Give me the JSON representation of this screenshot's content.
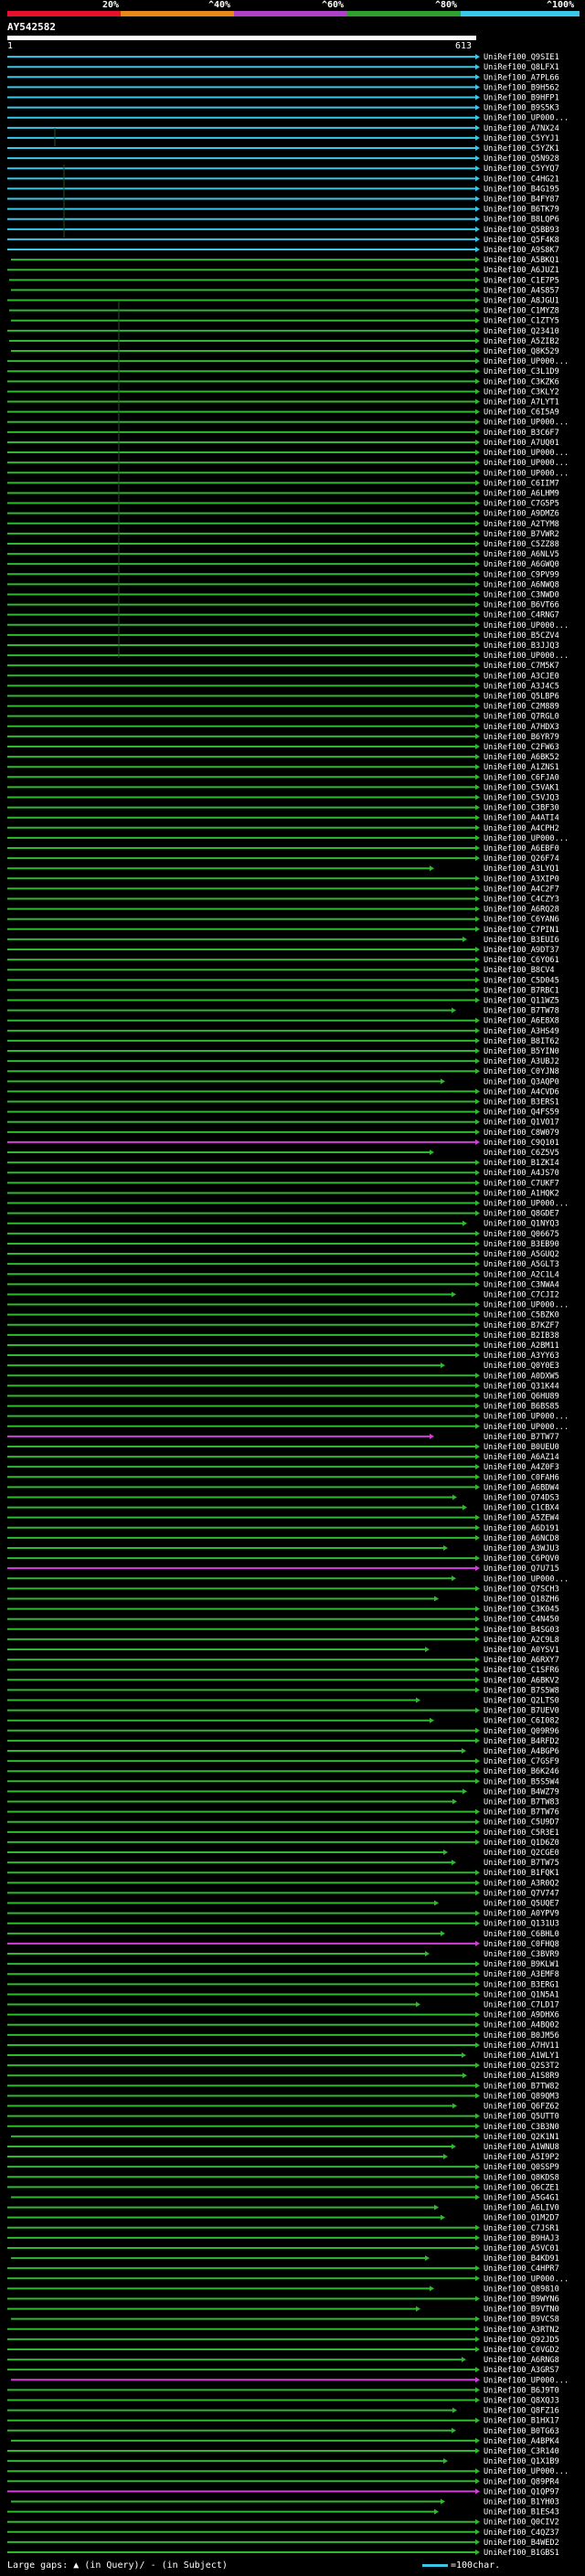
{
  "scale": {
    "labels": [
      "20%",
      "^40%",
      "^60%",
      "^80%",
      "^100%"
    ],
    "colors": [
      "#e8102a",
      "#e8881a",
      "#b040c8",
      "#30a030",
      "#38c8e8"
    ]
  },
  "title": "AY542582",
  "query": {
    "start": "1",
    "end": "613"
  },
  "hit_colors": {
    "cyan": "#38c8e8",
    "green": "#30b830",
    "magenta": "#d040d8",
    "gray": "#888888"
  },
  "hits": [
    "UniRef100_Q9SIE1",
    "UniRef100_Q8LFX1",
    "UniRef100_A7PL66",
    "UniRef100_B9H562",
    "UniRef100_B9HFP1",
    "UniRef100_B9S5K3",
    "UniRef100_UP000...",
    "UniRef100_A7NX24",
    "UniRef100_C5YYJ1",
    "UniRef100_C5YZK1",
    "UniRef100_Q5N928",
    "UniRef100_C5YYQ7",
    "UniRef100_C4HG21",
    "UniRef100_B4G195",
    "UniRef100_B4FY87",
    "UniRef100_B6TK79",
    "UniRef100_B8LQP6",
    "UniRef100_Q5BB93",
    "UniRef100_Q5F4K8",
    "UniRef100_A9S8K7",
    "UniRef100_A5BKQ1",
    "UniRef100_A6JUZ1",
    "UniRef100_C1E7P5",
    "UniRef100_A4S857",
    "UniRef100_A8JGU1",
    "UniRef100_C1MYZ8",
    "UniRef100_C1ZTY5",
    "UniRef100_Q23410",
    "UniRef100_A5ZIB2",
    "UniRef100_Q8K529",
    "UniRef100_UP000...",
    "UniRef100_C3L1D9",
    "UniRef100_C3KZK6",
    "UniRef100_C3KLY2",
    "UniRef100_A7LYT1",
    "UniRef100_C6I5A9",
    "UniRef100_UP000...",
    "UniRef100_B3C6F7",
    "UniRef100_A7UQ01",
    "UniRef100_UP000...",
    "UniRef100_UP000...",
    "UniRef100_UP000...",
    "UniRef100_C6IIM7",
    "UniRef100_A6LHM9",
    "UniRef100_C7G5P5",
    "UniRef100_A9DMZ6",
    "UniRef100_A2TYM8",
    "UniRef100_B7VWR2",
    "UniRef100_C5ZZ88",
    "UniRef100_A6NLV5",
    "UniRef100_A6GWQ0",
    "UniRef100_C9PV99",
    "UniRef100_A6NWQ8",
    "UniRef100_C3NWD0",
    "UniRef100_B6VT66",
    "UniRef100_C4RNG7",
    "UniRef100_UP000...",
    "UniRef100_B5CZV4",
    "UniRef100_B3JJQ3",
    "UniRef100_UP000...",
    "UniRef100_C7M5K7",
    "UniRef100_A3CJE0",
    "UniRef100_A3J4C5",
    "UniRef100_Q5LBP6",
    "UniRef100_C2M889",
    "UniRef100_Q7RGL0",
    "UniRef100_A7HDX3",
    "UniRef100_B6YR79",
    "UniRef100_C2FW63",
    "UniRef100_A6BK52",
    "UniRef100_A1ZNS1",
    "UniRef100_C6FJA0",
    "UniRef100_C5VAK1",
    "UniRef100_C5VJQ3",
    "UniRef100_C3BF30",
    "UniRef100_A4ATI4",
    "UniRef100_A4CPH2",
    "UniRef100_UP000...",
    "UniRef100_A6EBF0",
    "UniRef100_Q26F74",
    "UniRef100_A3LYQ1",
    "UniRef100_A3XIP0",
    "UniRef100_A4C2F7",
    "UniRef100_C4CZY3",
    "UniRef100_A6RQ28",
    "UniRef100_C6YAN6",
    "UniRef100_C7PIN1",
    "UniRef100_B3EUI6",
    "UniRef100_A9DT37",
    "UniRef100_C6YO61",
    "UniRef100_B8CV4",
    "UniRef100_C5D045",
    "UniRef100_B7RBC1",
    "UniRef100_Q11WZ5",
    "UniRef100_B7TW78",
    "UniRef100_A6E8X8",
    "UniRef100_A3HS49",
    "UniRef100_B8IT62",
    "UniRef100_B5YIN0",
    "UniRef100_A3UBJ2",
    "UniRef100_C0YJN8",
    "UniRef100_Q3AQP0",
    "UniRef100_A4CVD6",
    "UniRef100_B3ERS1",
    "UniRef100_Q4FS59",
    "UniRef100_Q1VO17",
    "UniRef100_C8W079",
    "UniRef100_C9Q101",
    "UniRef100_C6Z5V5",
    "UniRef100_B1ZKI4",
    "UniRef100_A4JS70",
    "UniRef100_C7UKF7",
    "UniRef100_A1HQK2",
    "UniRef100_UP000...",
    "UniRef100_Q8GDE7",
    "UniRef100_Q1NYQ3",
    "UniRef100_Q06675",
    "UniRef100_B3EB90",
    "UniRef100_A5GUQ2",
    "UniRef100_A5GLT3",
    "UniRef100_A2C1L4",
    "UniRef100_C3NWA4",
    "UniRef100_C7CJI2",
    "UniRef100_UP000...",
    "UniRef100_C5BZK0",
    "UniRef100_B7KZF7",
    "UniRef100_B2IB38",
    "UniRef100_A2BM11",
    "UniRef100_A3YY63",
    "UniRef100_Q0Y0E3",
    "UniRef100_A0DXW5",
    "UniRef100_Q31K44",
    "UniRef100_Q6HU89",
    "UniRef100_B6BS85",
    "UniRef100_UP000...",
    "UniRef100_UP000...",
    "UniRef100_B7TW77",
    "UniRef100_B0UEU0",
    "UniRef100_A6AZ14",
    "UniRef100_A4Z0F3",
    "UniRef100_C0FAH6",
    "UniRef100_A6BDW4",
    "UniRef100_Q74DS3",
    "UniRef100_C1CBX4",
    "UniRef100_A5ZEW4",
    "UniRef100_A6D191",
    "UniRef100_A6NCD8",
    "UniRef100_A3WJU3",
    "UniRef100_C6PQV0",
    "UniRef100_Q7U715",
    "UniRef100_UP000...",
    "UniRef100_Q7SCH3",
    "UniRef100_Q18ZH6",
    "UniRef100_C3K045",
    "UniRef100_C4N450",
    "UniRef100_B4SG03",
    "UniRef100_A2C9L8",
    "UniRef100_A0YSV1",
    "UniRef100_A6RXY7",
    "UniRef100_C1SFR6",
    "UniRef100_A6BKV2",
    "UniRef100_B7S5W8",
    "UniRef100_Q2LTS0",
    "UniRef100_B7UEV0",
    "UniRef100_C6I082",
    "UniRef100_Q09R96",
    "UniRef100_B4RFD2",
    "UniRef100_A4BGP6",
    "UniRef100_C7GSF9",
    "UniRef100_B6K246",
    "UniRef100_B5S5W4",
    "UniRef100_B4WZ79",
    "UniRef100_B7TW83",
    "UniRef100_B7TW76",
    "UniRef100_C5U9D7",
    "UniRef100_C5R3E1",
    "UniRef100_Q1D6Z0",
    "UniRef100_Q2CGE0",
    "UniRef100_B7TW75",
    "UniRef100_B1FQK1",
    "UniRef100_A3R0Q2",
    "UniRef100_Q7V747",
    "UniRef100_Q5UQE7",
    "UniRef100_A0YPV9",
    "UniRef100_Q131U3",
    "UniRef100_C6BHL0",
    "UniRef100_C0FHQ8",
    "UniRef100_C3BVR9",
    "UniRef100_B9KLW1",
    "UniRef100_A3EMF8",
    "UniRef100_B3ERG1",
    "UniRef100_Q1N5A1",
    "UniRef100_C7LD17",
    "UniRef100_A9DHX6",
    "UniRef100_A4BQ02",
    "UniRef100_B0JM56",
    "UniRef100_A7HV11",
    "UniRef100_A1WLY1",
    "UniRef100_Q2S3T2",
    "UniRef100_A1S8R9",
    "UniRef100_B7TW82",
    "UniRef100_Q89QM3",
    "UniRef100_Q6FZ62",
    "UniRef100_Q5UTT0",
    "UniRef100_C3B3N0",
    "UniRef100_Q2K1N1",
    "UniRef100_A1WNU8",
    "UniRef100_A5I9P2",
    "UniRef100_Q0SSP9",
    "UniRef100_Q8KDS8",
    "UniRef100_Q6CZE1",
    "UniRef100_A5G4G1",
    "UniRef100_A6LIV0",
    "UniRef100_Q1M2D7",
    "UniRef100_C7JSR1",
    "UniRef100_B9HAJ3",
    "UniRef100_A5VC01",
    "UniRef100_B4KD91",
    "UniRef100_C4HPR7",
    "UniRef100_UP000...",
    "UniRef100_Q89810",
    "UniRef100_B9WYN6",
    "UniRef100_B9VTN0",
    "UniRef100_B9VCS8",
    "UniRef100_A3RTN2",
    "UniRef100_Q92JD5",
    "UniRef100_C0VGD2",
    "UniRef100_A6RNG8",
    "UniRef100_A3GRS7",
    "UniRef100_UP000...",
    "UniRef100_B6J9T0",
    "UniRef100_Q8XQJ3",
    "UniRef100_Q8FZ16",
    "UniRef100_B1HX17",
    "UniRef100_B0TG63",
    "UniRef100_A4BPK4",
    "UniRef100_C3R140",
    "UniRef100_Q1X1B9",
    "UniRef100_UP000...",
    "UniRef100_Q89PR4",
    "UniRef100_Q1QP97",
    "UniRef100_B1YH03",
    "UniRef100_B1ES43",
    "UniRef100_Q0CIV2",
    "UniRef100_C4QZ37",
    "UniRef100_B4WED2",
    "UniRef100_B1GBS1"
  ],
  "footer": {
    "gaps_label": "Large gaps:",
    "in_query": "(in Query)/",
    "in_subject": "- (in Subject)",
    "scale_label": "=100char."
  }
}
